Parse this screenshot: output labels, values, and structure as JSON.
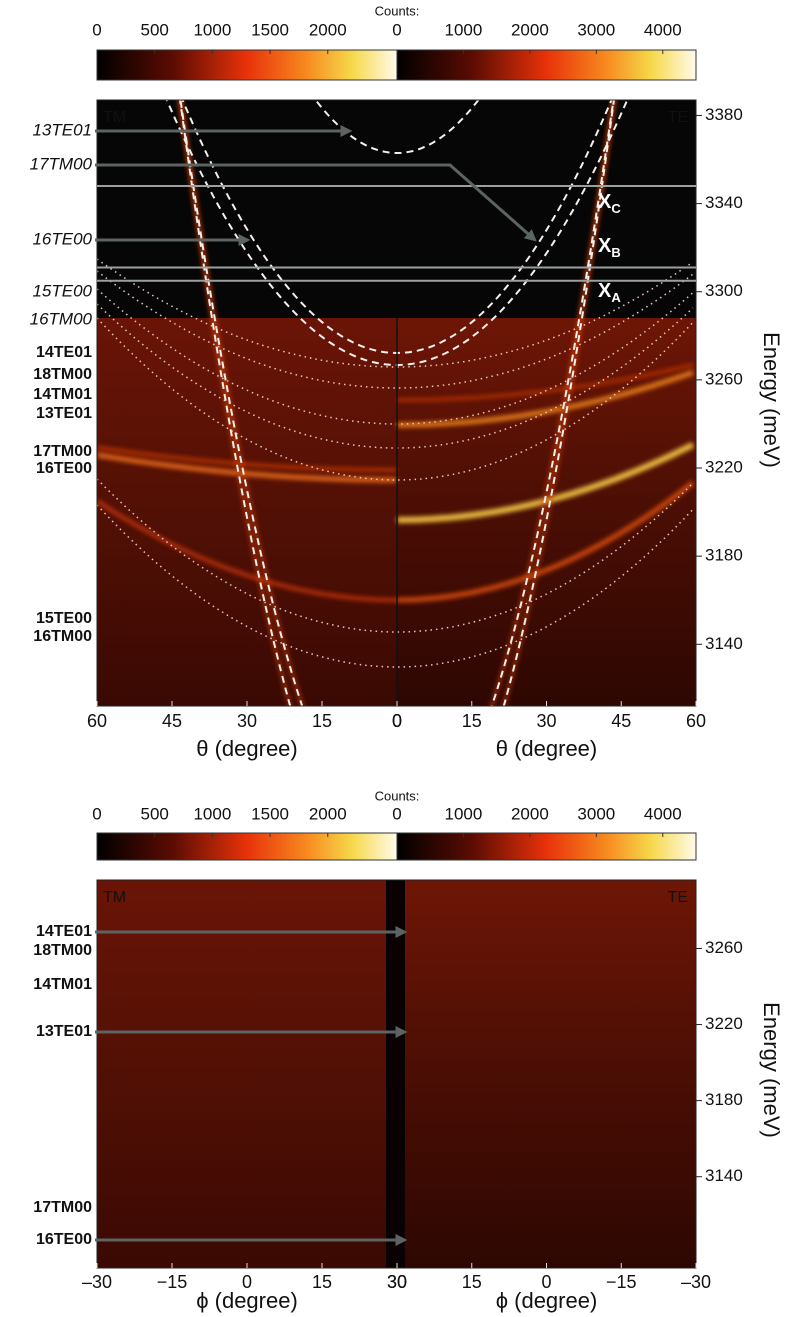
{
  "chart_data": [
    {
      "type": "dispersion",
      "colorbar_title": "Counts:",
      "colorbars": [
        {
          "lim": [
            0,
            2600
          ],
          "ticks": [
            0,
            500,
            1000,
            1500,
            2000
          ]
        },
        {
          "lim": [
            0,
            4500
          ],
          "ticks": [
            0,
            1000,
            2000,
            3000,
            4000
          ]
        }
      ],
      "halves": [
        {
          "name": "TM",
          "xlabel": "θ (degree)",
          "xlim": [
            60,
            0
          ],
          "xticks": [
            60,
            45,
            30,
            15,
            0
          ]
        },
        {
          "name": "TE",
          "xlabel": "θ (degree)",
          "xlim": [
            0,
            60
          ],
          "xticks": [
            0,
            15,
            30,
            45,
            60
          ]
        }
      ],
      "ylabel": "Energy (meV)",
      "ylim": [
        3112,
        3387
      ],
      "yticks": [
        3140,
        3180,
        3220,
        3260,
        3300,
        3340,
        3380
      ],
      "mode_labels_italic": [
        "13TE01",
        "17TM00",
        "16TE00",
        "15TE00",
        "16TM00"
      ],
      "mode_labels": [
        "14TE01",
        "18TM00",
        "14TM01",
        "13TE01",
        "17TM00",
        "16TE00",
        "15TE00",
        "16TM00"
      ],
      "excitons": [
        {
          "label": "X",
          "sub": "C",
          "energy": 3348
        },
        {
          "label": "X",
          "sub": "B",
          "energy": 3311
        },
        {
          "label": "X",
          "sub": "A",
          "energy": 3305
        }
      ]
    },
    {
      "type": "dispersion",
      "colorbar_title": "Counts:",
      "colorbars": [
        {
          "lim": [
            0,
            2600
          ],
          "ticks": [
            0,
            500,
            1000,
            1500,
            2000
          ]
        },
        {
          "lim": [
            0,
            4500
          ],
          "ticks": [
            0,
            1000,
            2000,
            3000,
            4000
          ]
        }
      ],
      "halves": [
        {
          "name": "TM",
          "xlabel": "ϕ (degree)",
          "xlim": [
            -30,
            30
          ],
          "xticks": [
            {
              "value": -30,
              "label": "–30"
            },
            {
              "value": -15,
              "label": "−15"
            },
            0,
            15,
            30
          ]
        },
        {
          "name": "TE",
          "xlabel": "ϕ (degree)",
          "xlim": [
            30,
            -30
          ],
          "xticks": [
            30,
            15,
            0,
            {
              "value": -15,
              "label": "−15"
            },
            {
              "value": -30,
              "label": "–30"
            }
          ]
        }
      ],
      "ylabel": "Energy (meV)",
      "ylim": [
        3092,
        3296
      ],
      "yticks": [
        3140,
        3180,
        3220,
        3260
      ],
      "mode_labels": [
        "14TE01",
        "18TM00",
        "14TM01",
        "13TE01",
        "17TM00",
        "16TE00"
      ]
    }
  ]
}
